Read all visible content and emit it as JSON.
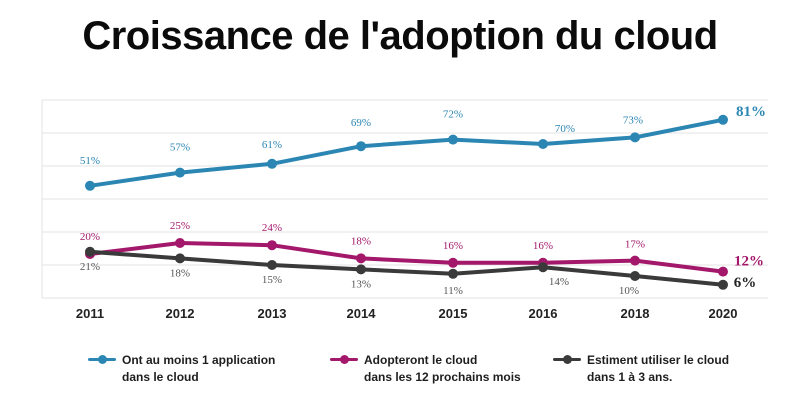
{
  "title": "Croissance de l'adoption du cloud",
  "colors": {
    "blue": "#2b86b3",
    "magenta": "#a3186b",
    "dark": "#3a3a3a",
    "grid": "#e3e3e3"
  },
  "chart_data": {
    "type": "line",
    "title": "Croissance de l'adoption du cloud",
    "categories": [
      "2011",
      "2012",
      "2013",
      "2014",
      "2015",
      "2016",
      "2018",
      "2020"
    ],
    "ylim": [
      0,
      90
    ],
    "grid": true,
    "legend_position": "bottom",
    "series": [
      {
        "name": "Ont au moins 1 application\ndans le cloud",
        "color": "#2b86b3",
        "values": [
          51,
          57,
          61,
          69,
          72,
          70,
          73,
          81
        ],
        "labels": [
          "51%",
          "57%",
          "61%",
          "69%",
          "72%",
          "70%",
          "73%",
          "81%"
        ]
      },
      {
        "name": "Adopteront le cloud\ndans les 12 prochains mois",
        "color": "#a3186b",
        "values": [
          20,
          25,
          24,
          18,
          16,
          16,
          17,
          12
        ],
        "labels": [
          "20%",
          "25%",
          "24%",
          "18%",
          "16%",
          "16%",
          "17%",
          "12%"
        ]
      },
      {
        "name": "Estiment utiliser le cloud\ndans 1 à 3 ans.",
        "color": "#3a3a3a",
        "values": [
          21,
          18,
          15,
          13,
          11,
          14,
          10,
          6
        ],
        "labels": [
          "21%",
          "18%",
          "15%",
          "13%",
          "11%",
          "14%",
          "10%",
          "6%"
        ]
      }
    ]
  }
}
